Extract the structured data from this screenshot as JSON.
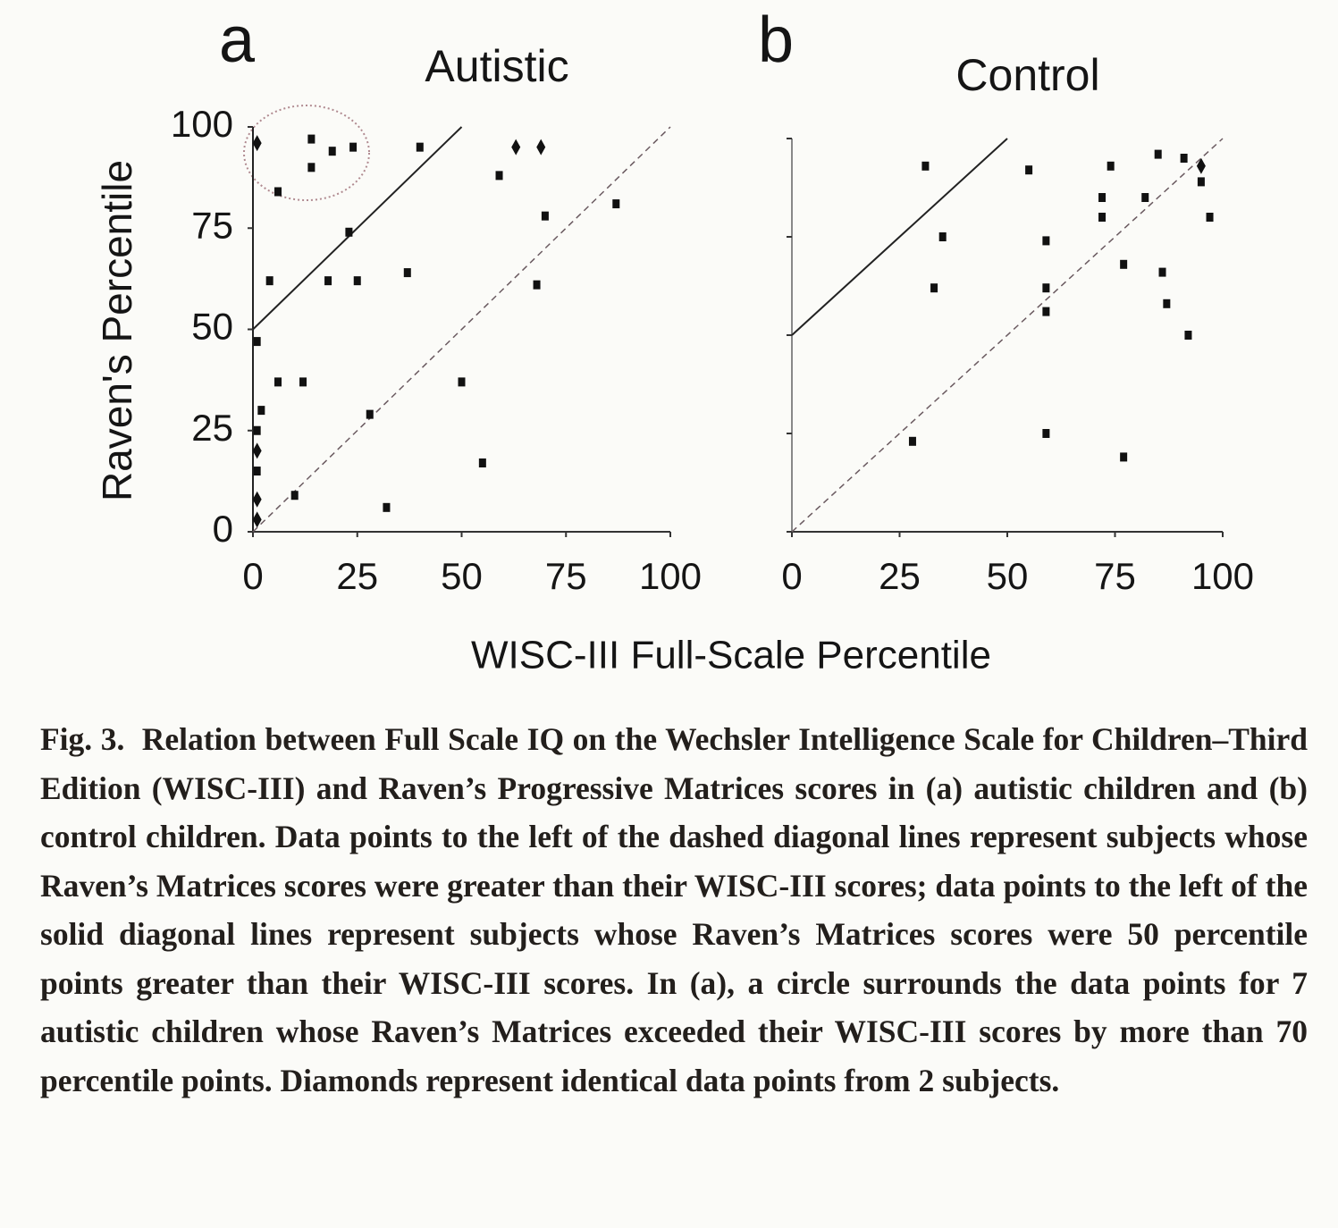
{
  "figure": {
    "ylabel": "Raven's Percentile",
    "xlabel": "WISC-III Full-Scale Percentile"
  },
  "chart_data": [
    {
      "type": "scatter",
      "panel": "a",
      "title": "Autistic",
      "xlim": [
        0,
        100
      ],
      "ylim": [
        0,
        100
      ],
      "xticks": [
        0,
        25,
        50,
        75,
        100
      ],
      "yticks": [
        0,
        25,
        50,
        75,
        100
      ],
      "ytick_labels": true,
      "color": "#111111",
      "series": [
        {
          "marker": "square",
          "x": [
            6,
            14,
            14,
            19,
            24,
            40,
            59,
            70,
            87,
            23,
            4,
            18,
            25,
            37,
            68,
            1,
            6,
            12,
            2,
            28,
            50,
            55,
            32,
            10,
            1,
            1
          ],
          "values": [
            84,
            97,
            90,
            94,
            95,
            95,
            88,
            78,
            81,
            74,
            62,
            62,
            62,
            64,
            61,
            47,
            37,
            37,
            30,
            29,
            37,
            17,
            6,
            9,
            25,
            15
          ]
        },
        {
          "marker": "diamond",
          "x": [
            1,
            63,
            69,
            1,
            1,
            1
          ],
          "values": [
            96,
            95,
            95,
            20,
            8,
            3
          ]
        }
      ],
      "reference_lines": [
        {
          "style": "dashed",
          "x": [
            0,
            100
          ],
          "y": [
            0,
            100
          ]
        },
        {
          "style": "solid",
          "x": [
            0,
            50
          ],
          "y": [
            50,
            100
          ]
        }
      ]
    },
    {
      "type": "scatter",
      "panel": "b",
      "title": "Control",
      "xlim": [
        0,
        100
      ],
      "ylim": [
        0,
        100
      ],
      "xticks": [
        0,
        25,
        50,
        75,
        100
      ],
      "yticks": [
        0,
        25,
        50,
        75,
        100
      ],
      "ytick_labels": false,
      "color": "#111111",
      "series": [
        {
          "marker": "square",
          "x": [
            31,
            35,
            33,
            28,
            55,
            59,
            59,
            59,
            59,
            74,
            72,
            72,
            77,
            77,
            82,
            85,
            86,
            87,
            91,
            92,
            95,
            97
          ],
          "values": [
            93,
            75,
            62,
            23,
            92,
            74,
            62,
            56,
            25,
            93,
            85,
            80,
            68,
            19,
            85,
            96,
            66,
            58,
            95,
            50,
            89,
            80
          ]
        },
        {
          "marker": "diamond",
          "x": [
            95
          ],
          "values": [
            93
          ]
        }
      ],
      "reference_lines": [
        {
          "style": "dashed",
          "x": [
            0,
            100
          ],
          "y": [
            0,
            100
          ]
        },
        {
          "style": "solid",
          "x": [
            0,
            50
          ],
          "y": [
            50,
            100
          ]
        }
      ]
    }
  ],
  "caption": {
    "label": "Fig. 3.",
    "text": "Relation between Full Scale IQ on the Wechsler Intelligence Scale for Children–Third Edition (WISC-III) and Raven’s Progressive Matrices scores in (a) autistic children and (b) control children. Data points to the left of the dashed diagonal lines represent subjects whose Raven’s Matrices scores were greater than their WISC-III scores; data points to the left of the solid diagonal lines represent subjects whose Raven’s Matrices scores were 50 percentile points greater than their WISC-III scores. In (a), a circle surrounds the data points for 7 autistic children whose Raven’s Matrices exceeded their WISC-III scores by more than 70 percentile points. Diamonds represent identical data points from 2 subjects."
  }
}
